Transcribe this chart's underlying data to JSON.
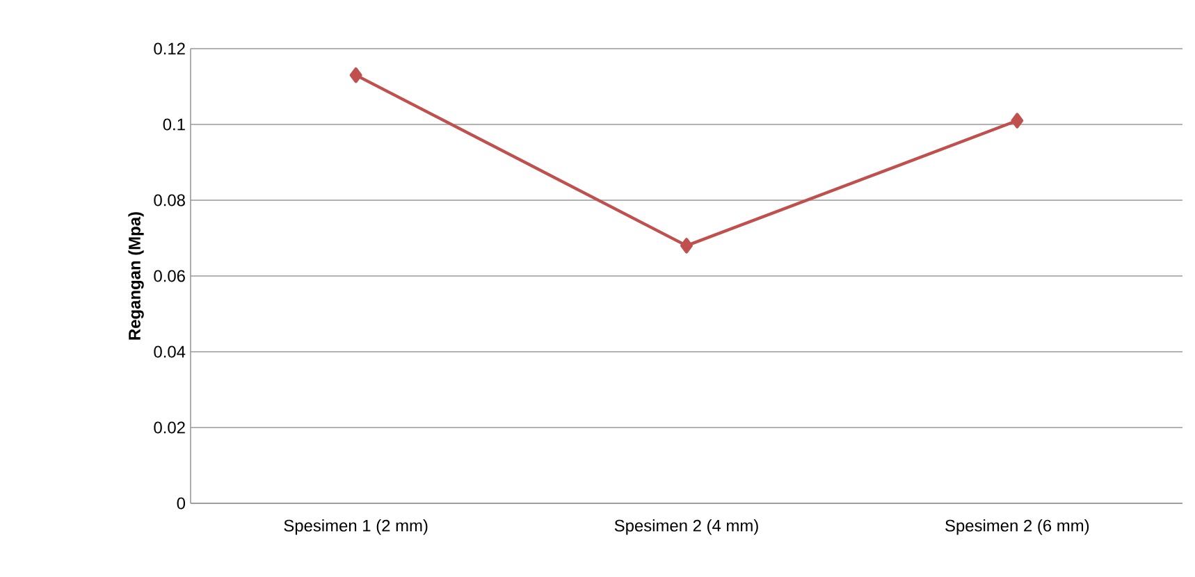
{
  "chart_data": {
    "type": "line",
    "ylabel": "Regangan (Mpa)",
    "categories": [
      "Spesimen 1 (2 mm)",
      "Spesimen 2 (4 mm)",
      "Spesimen 2 (6 mm)"
    ],
    "series": [
      {
        "color": "#c0504d",
        "values": [
          0.113,
          0.068,
          0.101
        ]
      }
    ],
    "ylim": [
      0,
      0.12
    ],
    "yticks": [
      0,
      0.02,
      0.04,
      0.06,
      0.08,
      0.1,
      0.12
    ],
    "grid": "y",
    "marker": "diamond",
    "line_style": "solid"
  }
}
